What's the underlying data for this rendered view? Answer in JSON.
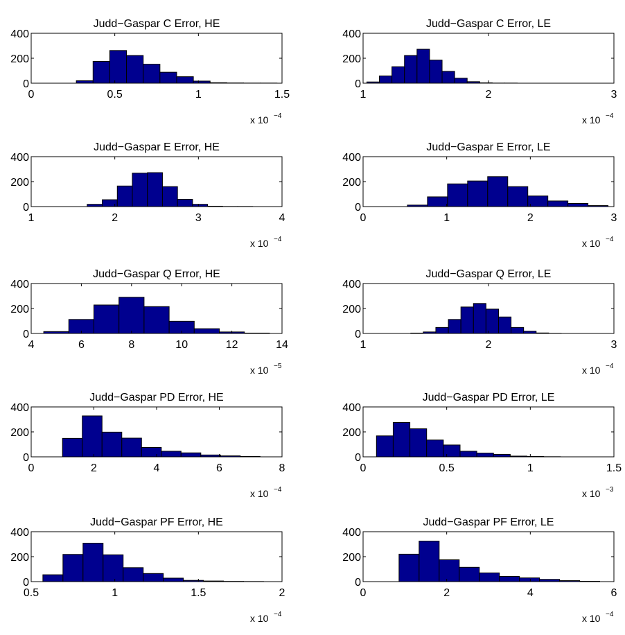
{
  "colors": {
    "bar_fill": "#00008f",
    "bar_edge": "#000000",
    "axes": "#000000",
    "background": "#ffffff"
  },
  "chart_data": [
    {
      "type": "bar",
      "title": "Judd−Gaspar C Error, HE",
      "xlim": [
        0,
        1.5
      ],
      "xticks": [
        "0",
        "0.5",
        "1",
        "1.5"
      ],
      "xtick_values": [
        0,
        0.5,
        1,
        1.5
      ],
      "ylim": [
        0,
        400
      ],
      "yticks": [
        "0",
        "200",
        "400"
      ],
      "ytick_values": [
        0,
        200,
        400
      ],
      "x_multiplier": "x 10",
      "x_multiplier_exponent": "−4",
      "bin_edges": [
        0.27,
        0.37,
        0.47,
        0.57,
        0.67,
        0.77,
        0.87,
        0.97,
        1.07,
        1.17,
        1.27,
        1.37,
        1.47
      ],
      "values": [
        20,
        175,
        262,
        222,
        152,
        88,
        52,
        17,
        4,
        2,
        1,
        1
      ]
    },
    {
      "type": "bar",
      "title": "Judd−Gaspar C Error, LE",
      "xlim": [
        1,
        3
      ],
      "xticks": [
        "1",
        "2",
        "3"
      ],
      "xtick_values": [
        1,
        2,
        3
      ],
      "ylim": [
        0,
        400
      ],
      "yticks": [
        "0",
        "200",
        "400"
      ],
      "ytick_values": [
        0,
        200,
        400
      ],
      "x_multiplier": "x 10",
      "x_multiplier_exponent": "−4",
      "bin_edges": [
        1.03,
        1.13,
        1.23,
        1.33,
        1.43,
        1.53,
        1.63,
        1.73,
        1.83,
        1.93,
        2.03,
        2.13,
        2.23
      ],
      "values": [
        10,
        58,
        132,
        222,
        272,
        185,
        95,
        40,
        12,
        3,
        1,
        1
      ]
    },
    {
      "type": "bar",
      "title": "Judd−Gaspar E Error, HE",
      "xlim": [
        1,
        4
      ],
      "xticks": [
        "1",
        "2",
        "3",
        "4"
      ],
      "xtick_values": [
        1,
        2,
        3,
        4
      ],
      "ylim": [
        0,
        400
      ],
      "yticks": [
        "0",
        "200",
        "400"
      ],
      "ytick_values": [
        0,
        200,
        400
      ],
      "x_multiplier": "x 10",
      "x_multiplier_exponent": "−4",
      "bin_edges": [
        1.67,
        1.85,
        2.03,
        2.21,
        2.39,
        2.57,
        2.75,
        2.93,
        3.11,
        3.29,
        3.47,
        3.65
      ],
      "values": [
        18,
        55,
        165,
        268,
        272,
        160,
        58,
        18,
        3,
        1,
        1
      ]
    },
    {
      "type": "bar",
      "title": "Judd−Gaspar E Error, LE",
      "xlim": [
        0,
        3
      ],
      "xticks": [
        "0",
        "1",
        "2",
        "3"
      ],
      "xtick_values": [
        0,
        1,
        2,
        3
      ],
      "ylim": [
        0,
        400
      ],
      "yticks": [
        "0",
        "200",
        "400"
      ],
      "ytick_values": [
        0,
        200,
        400
      ],
      "x_multiplier": "x 10",
      "x_multiplier_exponent": "−4",
      "bin_edges": [
        0.53,
        0.77,
        1.01,
        1.25,
        1.49,
        1.73,
        1.97,
        2.21,
        2.45,
        2.69,
        2.93
      ],
      "values": [
        12,
        78,
        182,
        205,
        240,
        160,
        85,
        45,
        25,
        8
      ]
    },
    {
      "type": "bar",
      "title": "Judd−Gaspar Q Error, HE",
      "xlim": [
        4,
        14
      ],
      "xticks": [
        "4",
        "6",
        "8",
        "10",
        "12",
        "14"
      ],
      "xtick_values": [
        4,
        6,
        8,
        10,
        12,
        14
      ],
      "ylim": [
        0,
        400
      ],
      "yticks": [
        "0",
        "200",
        "400"
      ],
      "ytick_values": [
        0,
        200,
        400
      ],
      "x_multiplier": "x 10",
      "x_multiplier_exponent": "−5",
      "bin_edges": [
        4.5,
        5.5,
        6.5,
        7.5,
        8.5,
        9.5,
        10.5,
        11.5,
        12.5,
        13.5
      ],
      "values": [
        15,
        112,
        228,
        290,
        215,
        98,
        38,
        12,
        3
      ]
    },
    {
      "type": "bar",
      "title": "Judd−Gaspar Q Error, LE",
      "xlim": [
        1,
        3
      ],
      "xticks": [
        "1",
        "2",
        "3"
      ],
      "xtick_values": [
        1,
        2,
        3
      ],
      "ylim": [
        0,
        400
      ],
      "yticks": [
        "0",
        "200",
        "400"
      ],
      "ytick_values": [
        0,
        200,
        400
      ],
      "x_multiplier": "x 10",
      "x_multiplier_exponent": "−4",
      "bin_edges": [
        1.38,
        1.48,
        1.58,
        1.68,
        1.78,
        1.88,
        1.98,
        2.08,
        2.18,
        2.28,
        2.38,
        2.48,
        2.58
      ],
      "values": [
        3,
        12,
        48,
        112,
        212,
        240,
        195,
        132,
        48,
        18,
        4,
        1
      ]
    },
    {
      "type": "bar",
      "title": "Judd−Gaspar PD Error, HE",
      "xlim": [
        0,
        8
      ],
      "xticks": [
        "0",
        "2",
        "4",
        "6",
        "8"
      ],
      "xtick_values": [
        0,
        2,
        4,
        6,
        8
      ],
      "ylim": [
        0,
        400
      ],
      "yticks": [
        "0",
        "200",
        "400"
      ],
      "ytick_values": [
        0,
        200,
        400
      ],
      "x_multiplier": "x 10",
      "x_multiplier_exponent": "−4",
      "bin_edges": [
        1.0,
        1.63,
        2.26,
        2.89,
        3.52,
        4.15,
        4.78,
        5.41,
        6.04,
        6.67,
        7.3
      ],
      "values": [
        148,
        328,
        198,
        150,
        75,
        45,
        32,
        15,
        8,
        3
      ]
    },
    {
      "type": "bar",
      "title": "Judd−Gaspar PD Error, LE",
      "xlim": [
        0,
        1.5
      ],
      "xticks": [
        "0",
        "0.5",
        "1",
        "1.5"
      ],
      "xtick_values": [
        0,
        0.5,
        1,
        1.5
      ],
      "ylim": [
        0,
        400
      ],
      "yticks": [
        "0",
        "200",
        "400"
      ],
      "ytick_values": [
        0,
        200,
        400
      ],
      "x_multiplier": "x 10",
      "x_multiplier_exponent": "−3",
      "bin_edges": [
        0.08,
        0.18,
        0.28,
        0.38,
        0.48,
        0.58,
        0.68,
        0.78,
        0.88,
        0.98,
        1.08,
        1.18
      ],
      "values": [
        168,
        275,
        225,
        135,
        95,
        45,
        30,
        20,
        6,
        3,
        1
      ]
    },
    {
      "type": "bar",
      "title": "Judd−Gaspar PF Error, HE",
      "xlim": [
        0.5,
        2
      ],
      "xticks": [
        "0.5",
        "1",
        "1.5",
        "2"
      ],
      "xtick_values": [
        0.5,
        1,
        1.5,
        2
      ],
      "ylim": [
        0,
        400
      ],
      "yticks": [
        "0",
        "200",
        "400"
      ],
      "ytick_values": [
        0,
        200,
        400
      ],
      "x_multiplier": "x 10",
      "x_multiplier_exponent": "−4",
      "bin_edges": [
        0.57,
        0.69,
        0.81,
        0.93,
        1.05,
        1.17,
        1.29,
        1.41,
        1.53,
        1.65,
        1.77,
        1.89
      ],
      "values": [
        55,
        218,
        308,
        215,
        112,
        65,
        28,
        10,
        5,
        2,
        1
      ]
    },
    {
      "type": "bar",
      "title": "Judd−Gaspar PF Error, LE",
      "xlim": [
        0,
        6
      ],
      "xticks": [
        "0",
        "2",
        "4",
        "6"
      ],
      "xtick_values": [
        0,
        2,
        4,
        6
      ],
      "ylim": [
        0,
        400
      ],
      "yticks": [
        "0",
        "200",
        "400"
      ],
      "ytick_values": [
        0,
        200,
        400
      ],
      "x_multiplier": "x 10",
      "x_multiplier_exponent": "−4",
      "bin_edges": [
        0.86,
        1.34,
        1.82,
        2.3,
        2.78,
        3.26,
        3.74,
        4.22,
        4.7,
        5.18,
        5.66
      ],
      "values": [
        220,
        325,
        175,
        115,
        70,
        42,
        30,
        18,
        8,
        3
      ]
    }
  ]
}
